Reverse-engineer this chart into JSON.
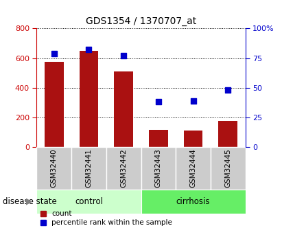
{
  "title": "GDS1354 / 1370707_at",
  "samples": [
    "GSM32440",
    "GSM32441",
    "GSM32442",
    "GSM32443",
    "GSM32444",
    "GSM32445"
  ],
  "counts": [
    575,
    650,
    510,
    115,
    110,
    175
  ],
  "percentiles": [
    79,
    82,
    77,
    38,
    39,
    48
  ],
  "groups": [
    "control",
    "control",
    "control",
    "cirrhosis",
    "cirrhosis",
    "cirrhosis"
  ],
  "control_color": "#ccffcc",
  "cirrhosis_color": "#66ee66",
  "bar_color": "#aa1111",
  "dot_color": "#0000cc",
  "left_ylim": [
    0,
    800
  ],
  "right_ylim": [
    0,
    100
  ],
  "left_yticks": [
    0,
    200,
    400,
    600,
    800
  ],
  "right_yticks": [
    0,
    25,
    50,
    75,
    100
  ],
  "right_yticklabels": [
    "0",
    "25",
    "50",
    "75",
    "100%"
  ],
  "left_tick_color": "#cc0000",
  "right_tick_color": "#0000cc",
  "sample_box_color": "#cccccc",
  "disease_state_label": "disease state",
  "legend_count_label": "count",
  "legend_percentile_label": "percentile rank within the sample"
}
